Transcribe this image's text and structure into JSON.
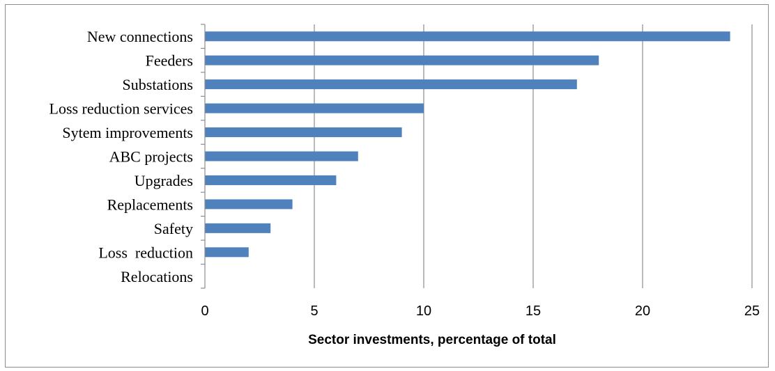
{
  "chart_data": {
    "type": "bar",
    "orientation": "horizontal",
    "categories": [
      "New connections",
      "Feeders",
      "Substations",
      "Loss reduction services",
      "Sytem improvements",
      "ABC projects",
      "Upgrades",
      "Replacements",
      "Safety",
      "Loss  reduction",
      "Relocations"
    ],
    "values": [
      24,
      18,
      17,
      10,
      9,
      7,
      6,
      4,
      3,
      2,
      0
    ],
    "xlabel": "Sector investments, percentage of total",
    "xlim": [
      0,
      25
    ],
    "xticks": [
      0,
      5,
      10,
      15,
      20,
      25
    ],
    "grid": "vertical",
    "legend": "none",
    "bar_color": "#4f81bd"
  }
}
